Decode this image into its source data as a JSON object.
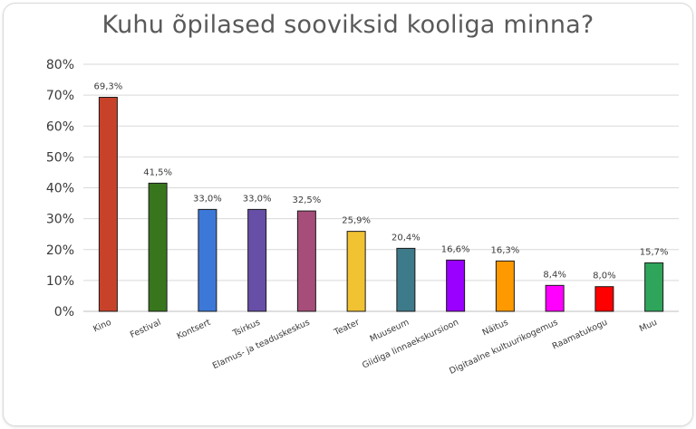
{
  "chart_data": {
    "type": "bar",
    "title": "Kuhu õpilased sooviksid kooliga minna?",
    "xlabel": "",
    "ylabel": "",
    "ylim": [
      0,
      80
    ],
    "yticks": [
      "0%",
      "10%",
      "20%",
      "30%",
      "40%",
      "50%",
      "60%",
      "70%",
      "80%"
    ],
    "grid": true,
    "categories": [
      "Kino",
      "Festival",
      "Kontsert",
      "Tsirkus",
      "Elamus- ja teaduskeskus",
      "Teater",
      "Muuseum",
      "Giidiga linnaekskursioon",
      "Näitus",
      "Digitaalne kultuurikogemus",
      "Raamatukogu",
      "Muu"
    ],
    "values": [
      69.3,
      41.5,
      33.0,
      33.0,
      32.5,
      25.9,
      20.4,
      16.6,
      16.3,
      8.4,
      8.0,
      15.7
    ],
    "value_labels": [
      "69,3%",
      "41,5%",
      "33,0%",
      "33,0%",
      "32,5%",
      "25,9%",
      "20,4%",
      "16,6%",
      "16,3%",
      "8,4%",
      "8,0%",
      "15,7%"
    ],
    "colors": [
      "#c8422a",
      "#38761d",
      "#3c78d8",
      "#674ea7",
      "#a64d79",
      "#f1c232",
      "#3d7a8a",
      "#9900ff",
      "#ff9900",
      "#ff00ff",
      "#ff0000",
      "#2ea55a"
    ]
  }
}
